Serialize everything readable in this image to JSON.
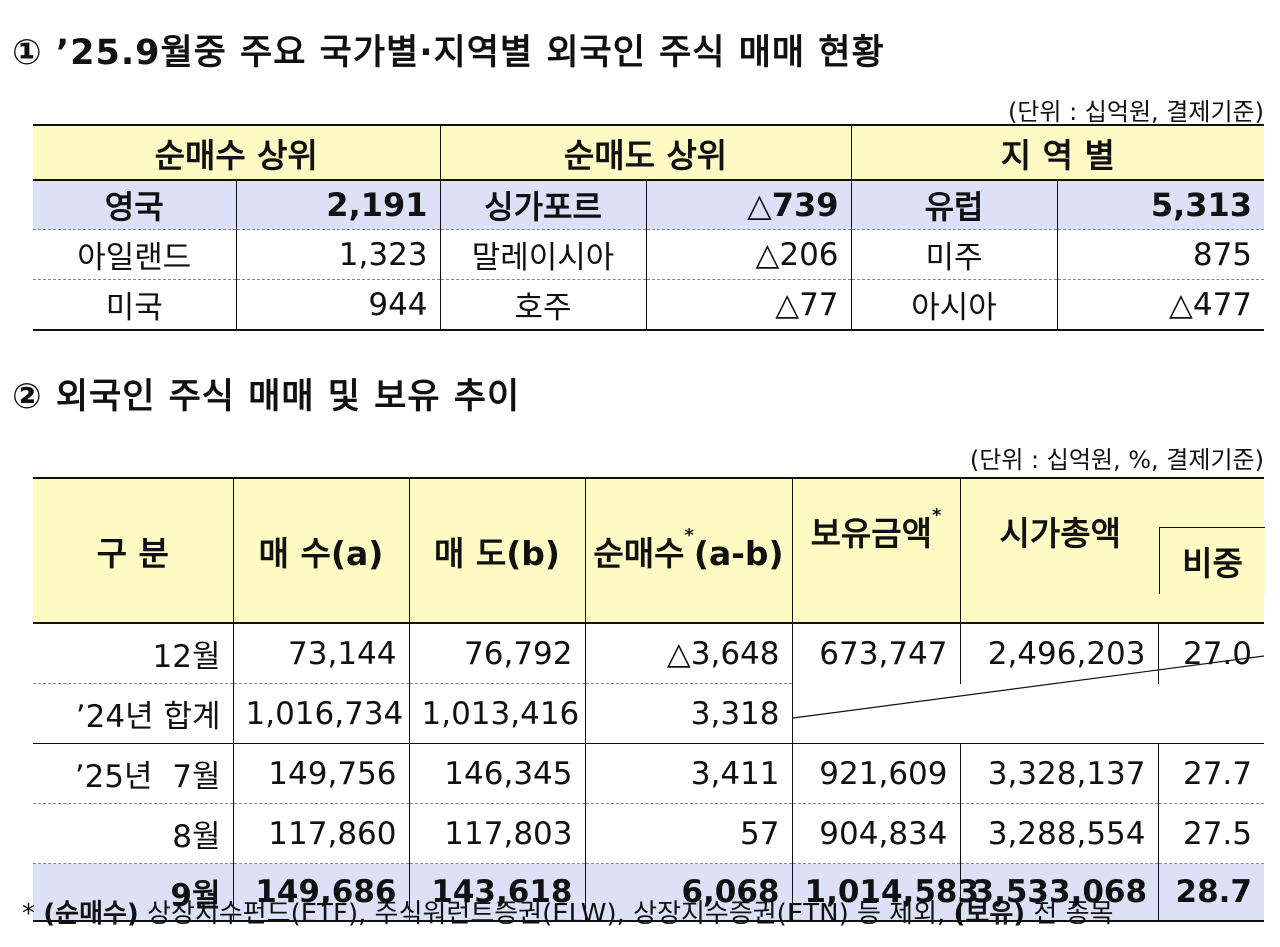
{
  "section1": {
    "title": "① ’25.9월중 주요 국가별·지역별 외국인 주식 매매 현황",
    "unit": "(단위 : 십억원, 결제기준)",
    "headers": [
      "순매수 상위",
      "순매도 상위",
      "지 역 별"
    ],
    "rows": [
      {
        "buy_name": "영국",
        "buy_val": "2,191",
        "sell_name": "싱가포르",
        "sell_val": "△739",
        "region_name": "유럽",
        "region_val": "5,313"
      },
      {
        "buy_name": "아일랜드",
        "buy_val": "1,323",
        "sell_name": "말레이시아",
        "sell_val": "△206",
        "region_name": "미주",
        "region_val": "875"
      },
      {
        "buy_name": "미국",
        "buy_val": "944",
        "sell_name": "호주",
        "sell_val": "△77",
        "region_name": "아시아",
        "region_val": "△477"
      }
    ]
  },
  "section2": {
    "title": "② 외국인 주식 매매 및 보유 추이",
    "unit": "(단위 : 십억원, %, 결제기준)",
    "headers": {
      "category": "구 분",
      "buy": "매 수(a)",
      "sell": "매 도(b)",
      "net": "순매수",
      "net_suffix": "(a-b)",
      "holding": "보유금액",
      "market_cap": "시가총액",
      "ratio": "비중",
      "star": "*"
    },
    "rows": [
      {
        "label": "12월",
        "buy": "73,144",
        "sell": "76,792",
        "net": "△3,648",
        "holding": "673,747",
        "market_cap": "2,496,203",
        "ratio": "27.0"
      },
      {
        "label": "’24년 합계",
        "buy": "1,016,734",
        "sell": "1,013,416",
        "net": "3,318"
      },
      {
        "label": "’25년  7월",
        "buy": "149,756",
        "sell": "146,345",
        "net": "3,411",
        "holding": "921,609",
        "market_cap": "3,328,137",
        "ratio": "27.7"
      },
      {
        "label": "8월",
        "buy": "117,860",
        "sell": "117,803",
        "net": "57",
        "holding": "904,834",
        "market_cap": "3,288,554",
        "ratio": "27.5"
      },
      {
        "label": "9월",
        "buy": "149,686",
        "sell": "143,618",
        "net": "6,068",
        "holding": "1,014,583",
        "market_cap": "3,533,068",
        "ratio": "28.7"
      }
    ]
  },
  "footnote": {
    "star": "*",
    "tag1": "(순매수)",
    "text1": "상장지수펀드(ETF), 주식워런트증권(ELW), 상장지수증권(ETN) 등 제외,",
    "tag2": "(보유)",
    "text2": "전 종목"
  }
}
